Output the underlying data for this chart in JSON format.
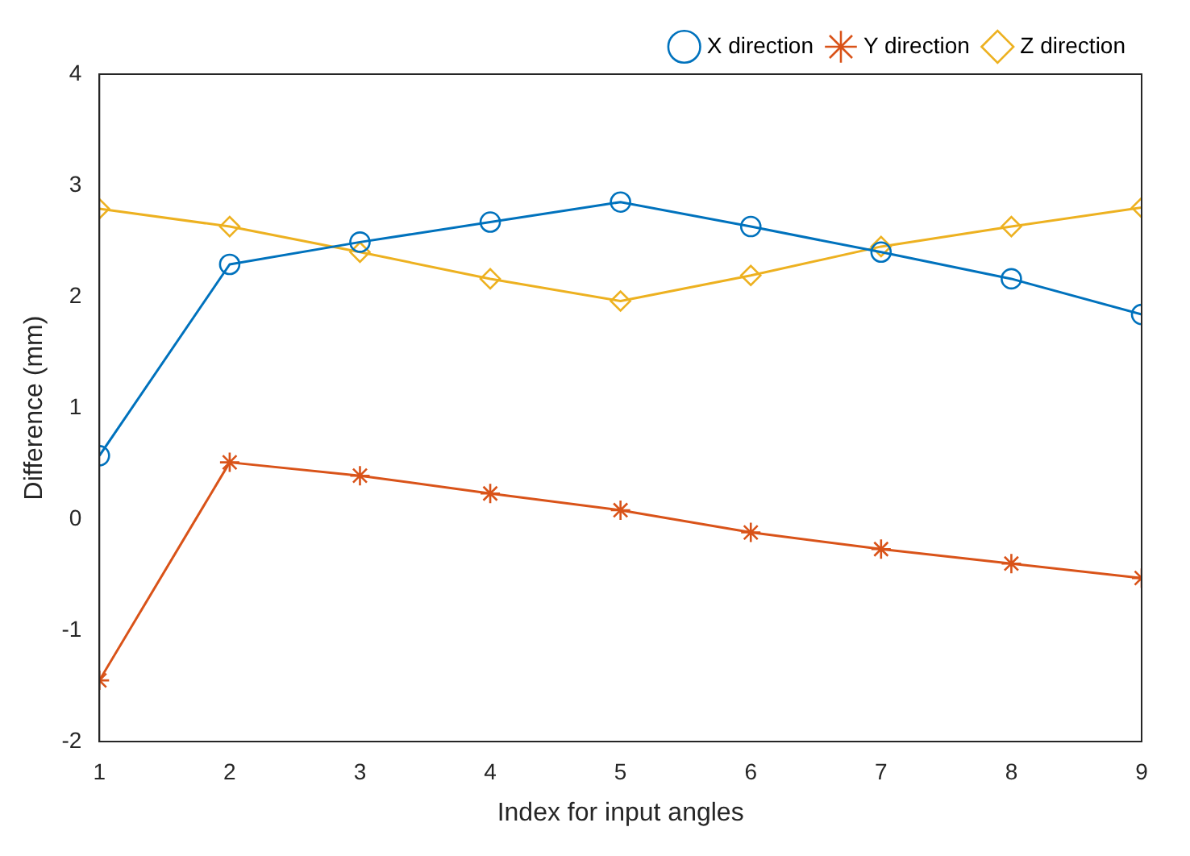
{
  "chart_data": {
    "type": "line",
    "xlabel": "Index for input angles",
    "ylabel": "Difference (mm)",
    "x": [
      1,
      2,
      3,
      4,
      5,
      6,
      7,
      8,
      9
    ],
    "series": [
      {
        "name": "X direction",
        "color": "#0072bd",
        "marker": "circle",
        "values": [
          0.57,
          2.29,
          2.49,
          2.67,
          2.85,
          2.63,
          2.4,
          2.16,
          1.84
        ]
      },
      {
        "name": "Y direction",
        "color": "#d95319",
        "marker": "cross",
        "values": [
          -1.45,
          0.51,
          0.39,
          0.23,
          0.08,
          -0.12,
          -0.27,
          -0.4,
          -0.53
        ]
      },
      {
        "name": "Z direction",
        "color": "#edb120",
        "marker": "diamond",
        "values": [
          2.79,
          2.63,
          2.4,
          2.16,
          1.96,
          2.19,
          2.45,
          2.63,
          2.8
        ]
      }
    ],
    "xlim": [
      1,
      9
    ],
    "xticks": [
      1,
      2,
      3,
      4,
      5,
      6,
      7,
      8,
      9
    ],
    "ylim": [
      -2,
      4
    ],
    "yticks": [
      -2,
      -1,
      0,
      1,
      2,
      3,
      4
    ],
    "grid": false,
    "legend": "top right",
    "line_style": "solid"
  }
}
